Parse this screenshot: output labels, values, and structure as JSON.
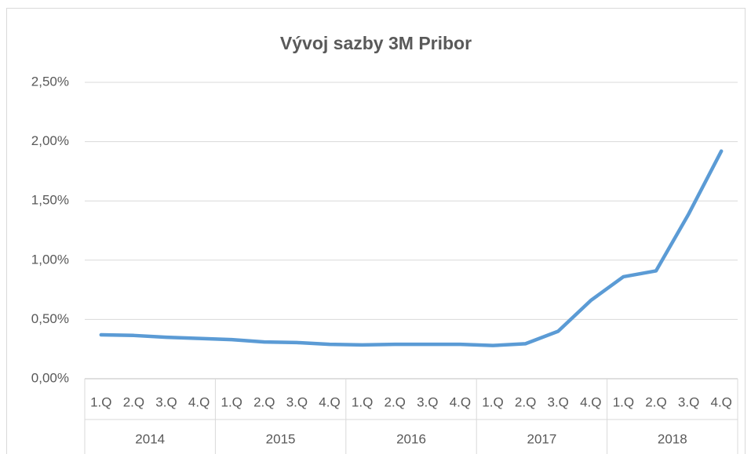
{
  "chart_data": {
    "type": "line",
    "title": "Vývoj sazby 3M Pribor",
    "categories": [
      "1.Q",
      "2.Q",
      "3.Q",
      "4.Q",
      "1.Q",
      "2.Q",
      "3.Q",
      "4.Q",
      "1.Q",
      "2.Q",
      "3.Q",
      "4.Q",
      "1.Q",
      "2.Q",
      "3.Q",
      "4.Q",
      "1.Q",
      "2.Q",
      "3.Q",
      "4.Q"
    ],
    "category_groups": [
      "2014",
      "2015",
      "2016",
      "2017",
      "2018"
    ],
    "series": [
      {
        "name": "3M Pribor",
        "color": "#5b9bd5",
        "values": [
          0.37,
          0.365,
          0.35,
          0.34,
          0.33,
          0.31,
          0.305,
          0.29,
          0.285,
          0.29,
          0.29,
          0.29,
          0.28,
          0.295,
          0.4,
          0.66,
          0.86,
          0.91,
          1.39,
          1.92
        ]
      }
    ],
    "ylim": [
      0,
      2.5
    ],
    "yticks": [
      {
        "value": 0,
        "label": "0,00%"
      },
      {
        "value": 0.5,
        "label": "0,50%"
      },
      {
        "value": 1,
        "label": "1,00%"
      },
      {
        "value": 1.5,
        "label": "1,50%"
      },
      {
        "value": 2,
        "label": "2,00%"
      },
      {
        "value": 2.5,
        "label": "2,50%"
      }
    ],
    "grid": true
  }
}
